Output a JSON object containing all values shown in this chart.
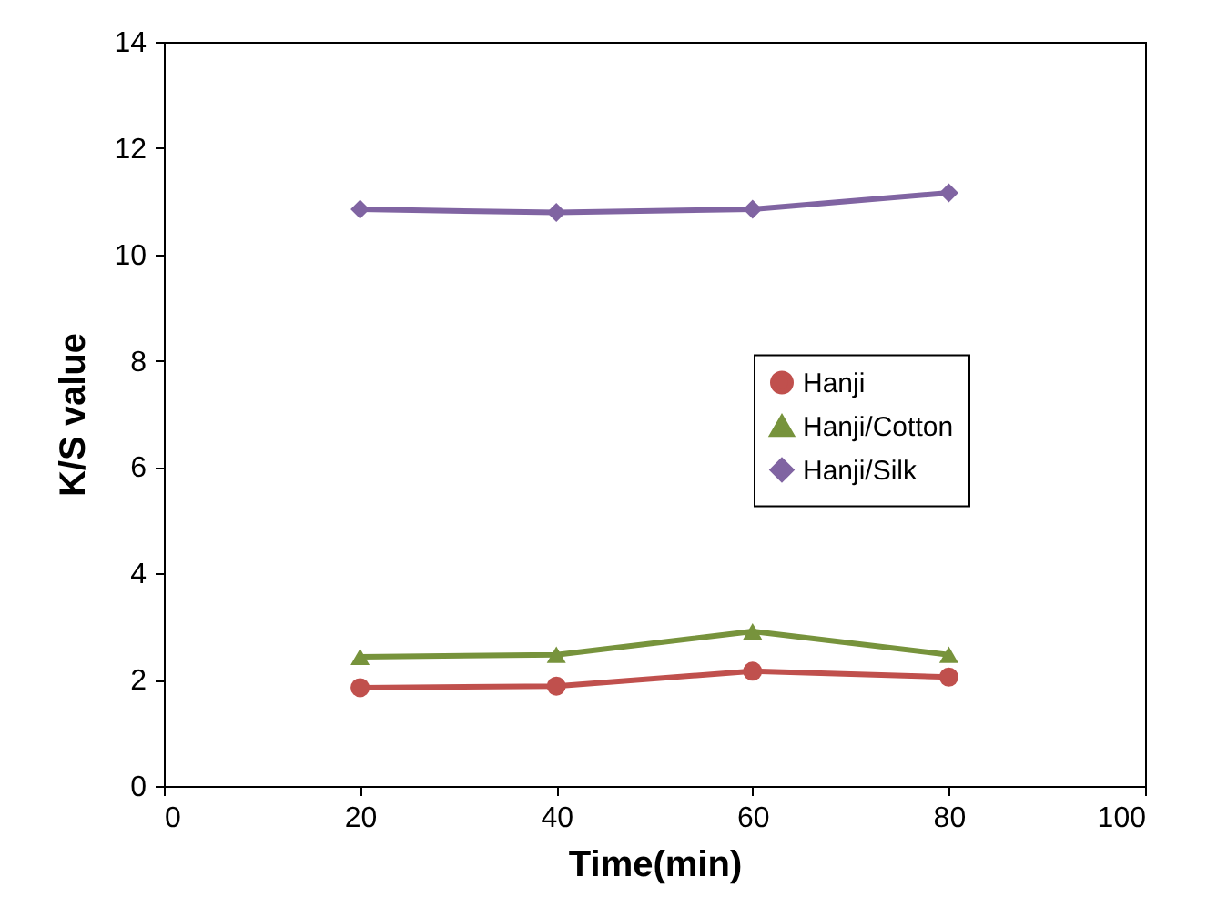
{
  "chart_data": {
    "type": "line",
    "xlabel": "Time(min)",
    "ylabel": "K/S value",
    "x": [
      20,
      40,
      60,
      80
    ],
    "series": [
      {
        "name": "Hanji",
        "color": "#c0504d",
        "marker": "circle",
        "values": [
          1.85,
          1.88,
          2.16,
          2.05
        ]
      },
      {
        "name": "Hanji/Cotton",
        "color": "#77933c",
        "marker": "triangle",
        "values": [
          2.43,
          2.47,
          2.91,
          2.47
        ]
      },
      {
        "name": "Hanji/Silk",
        "color": "#8064a2",
        "marker": "diamond",
        "values": [
          10.85,
          10.79,
          10.85,
          11.16
        ]
      }
    ],
    "xlim": [
      0,
      100
    ],
    "xticks": [
      0,
      20,
      40,
      60,
      80,
      100
    ],
    "ylim": [
      0,
      14
    ],
    "yticks": [
      0,
      2,
      4,
      6,
      8,
      10,
      12,
      14
    ],
    "grid": false,
    "legend": "right",
    "line_style": "solid"
  }
}
